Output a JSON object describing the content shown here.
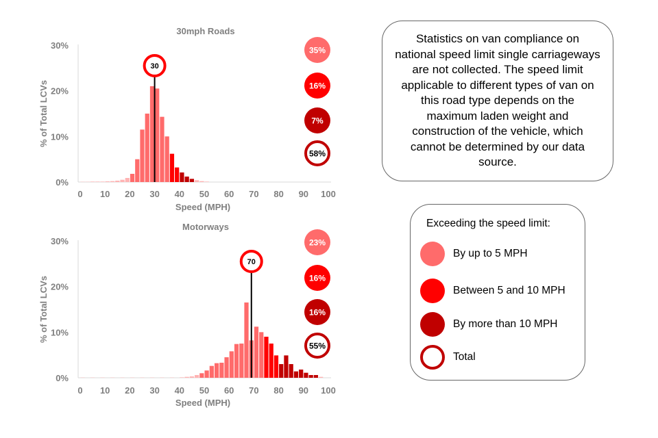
{
  "colors": {
    "light": "#ff6b6b",
    "mid": "#ff0000",
    "dark": "#c00000",
    "base": "#ffb3b3",
    "outline": "#c00000",
    "axis_text": "#7f7f7f",
    "limit_line": "#000000"
  },
  "chart_data": [
    {
      "type": "bar",
      "title": "30mph Roads",
      "xlabel": "Speed (MPH)",
      "ylabel": "% of Total LCVs",
      "xlim": [
        0,
        100
      ],
      "ylim": [
        0,
        30
      ],
      "x_ticks": [
        "0",
        "10",
        "20",
        "30",
        "40",
        "50",
        "60",
        "70",
        "80",
        "90",
        "100"
      ],
      "y_ticks": [
        "0%",
        "10%",
        "20%",
        "30%"
      ],
      "bin_width": 2,
      "speed_limit": 30,
      "speed_limit_label": "30",
      "bins": [
        {
          "start": 0,
          "value": 0.05
        },
        {
          "start": 2,
          "value": 0.05
        },
        {
          "start": 4,
          "value": 0.1
        },
        {
          "start": 6,
          "value": 0.1
        },
        {
          "start": 8,
          "value": 0.1
        },
        {
          "start": 10,
          "value": 0.15
        },
        {
          "start": 12,
          "value": 0.2
        },
        {
          "start": 14,
          "value": 0.3
        },
        {
          "start": 16,
          "value": 0.5
        },
        {
          "start": 18,
          "value": 0.9
        },
        {
          "start": 20,
          "value": 1.8
        },
        {
          "start": 22,
          "value": 5.0
        },
        {
          "start": 24,
          "value": 11.5
        },
        {
          "start": 26,
          "value": 15.0
        },
        {
          "start": 28,
          "value": 21.0
        },
        {
          "start": 30,
          "value": 20.5
        },
        {
          "start": 32,
          "value": 14.3
        },
        {
          "start": 34,
          "value": 10.0
        },
        {
          "start": 36,
          "value": 6.2
        },
        {
          "start": 38,
          "value": 3.2
        },
        {
          "start": 40,
          "value": 2.1
        },
        {
          "start": 42,
          "value": 1.2
        },
        {
          "start": 44,
          "value": 0.7
        },
        {
          "start": 46,
          "value": 0.4
        },
        {
          "start": 48,
          "value": 0.2
        },
        {
          "start": 50,
          "value": 0.1
        }
      ],
      "badges": [
        {
          "label": "35%",
          "kind": "light"
        },
        {
          "label": "16%",
          "kind": "mid"
        },
        {
          "label": "7%",
          "kind": "dark"
        },
        {
          "label": "58%",
          "kind": "total"
        }
      ]
    },
    {
      "type": "bar",
      "title": "Motorways",
      "xlabel": "Speed (MPH)",
      "ylabel": "% of Total LCVs",
      "xlim": [
        0,
        100
      ],
      "ylim": [
        0,
        30
      ],
      "x_ticks": [
        "0",
        "10",
        "20",
        "30",
        "40",
        "50",
        "60",
        "70",
        "80",
        "90",
        "100"
      ],
      "y_ticks": [
        "0%",
        "10%",
        "20%",
        "30%"
      ],
      "bin_width": 2,
      "speed_limit": 69,
      "speed_limit_label": "70",
      "bins": [
        {
          "start": 0,
          "value": 0.05
        },
        {
          "start": 4,
          "value": 0.05
        },
        {
          "start": 8,
          "value": 0.05
        },
        {
          "start": 12,
          "value": 0.05
        },
        {
          "start": 16,
          "value": 0.05
        },
        {
          "start": 20,
          "value": 0.05
        },
        {
          "start": 24,
          "value": 0.05
        },
        {
          "start": 28,
          "value": 0.05
        },
        {
          "start": 32,
          "value": 0.05
        },
        {
          "start": 36,
          "value": 0.05
        },
        {
          "start": 40,
          "value": 0.1
        },
        {
          "start": 42,
          "value": 0.2
        },
        {
          "start": 44,
          "value": 0.3
        },
        {
          "start": 46,
          "value": 0.6
        },
        {
          "start": 48,
          "value": 1.0
        },
        {
          "start": 50,
          "value": 1.6
        },
        {
          "start": 52,
          "value": 2.6
        },
        {
          "start": 54,
          "value": 3.2
        },
        {
          "start": 56,
          "value": 3.3
        },
        {
          "start": 58,
          "value": 4.5
        },
        {
          "start": 60,
          "value": 5.8
        },
        {
          "start": 62,
          "value": 7.4
        },
        {
          "start": 64,
          "value": 7.5
        },
        {
          "start": 66,
          "value": 16.5
        },
        {
          "start": 68,
          "value": 8.2
        },
        {
          "start": 70,
          "value": 11.2
        },
        {
          "start": 72,
          "value": 10.0
        },
        {
          "start": 74,
          "value": 9.0
        },
        {
          "start": 76,
          "value": 7.5
        },
        {
          "start": 78,
          "value": 4.9
        },
        {
          "start": 80,
          "value": 3.0
        },
        {
          "start": 82,
          "value": 4.9
        },
        {
          "start": 84,
          "value": 3.0
        },
        {
          "start": 86,
          "value": 1.4
        },
        {
          "start": 88,
          "value": 1.8
        },
        {
          "start": 90,
          "value": 1.1
        },
        {
          "start": 92,
          "value": 0.6
        },
        {
          "start": 94,
          "value": 0.6
        },
        {
          "start": 96,
          "value": 0.2
        }
      ],
      "badges": [
        {
          "label": "23%",
          "kind": "light"
        },
        {
          "label": "16%",
          "kind": "mid"
        },
        {
          "label": "16%",
          "kind": "dark"
        },
        {
          "label": "55%",
          "kind": "total"
        }
      ]
    }
  ],
  "note": {
    "text": "Statistics on van compliance on national speed limit single carriageways are not collected. The speed limit applicable to different types of van on this road type depends on the maximum laden weight and construction of the vehicle, which cannot be determined by our data source."
  },
  "legend": {
    "title": "Exceeding the speed limit:",
    "items": [
      {
        "label": "By up to 5 MPH",
        "kind": "light"
      },
      {
        "label": "Between 5 and 10 MPH",
        "kind": "mid"
      },
      {
        "label": "By more than 10 MPH",
        "kind": "dark"
      },
      {
        "label": "Total",
        "kind": "total"
      }
    ]
  }
}
